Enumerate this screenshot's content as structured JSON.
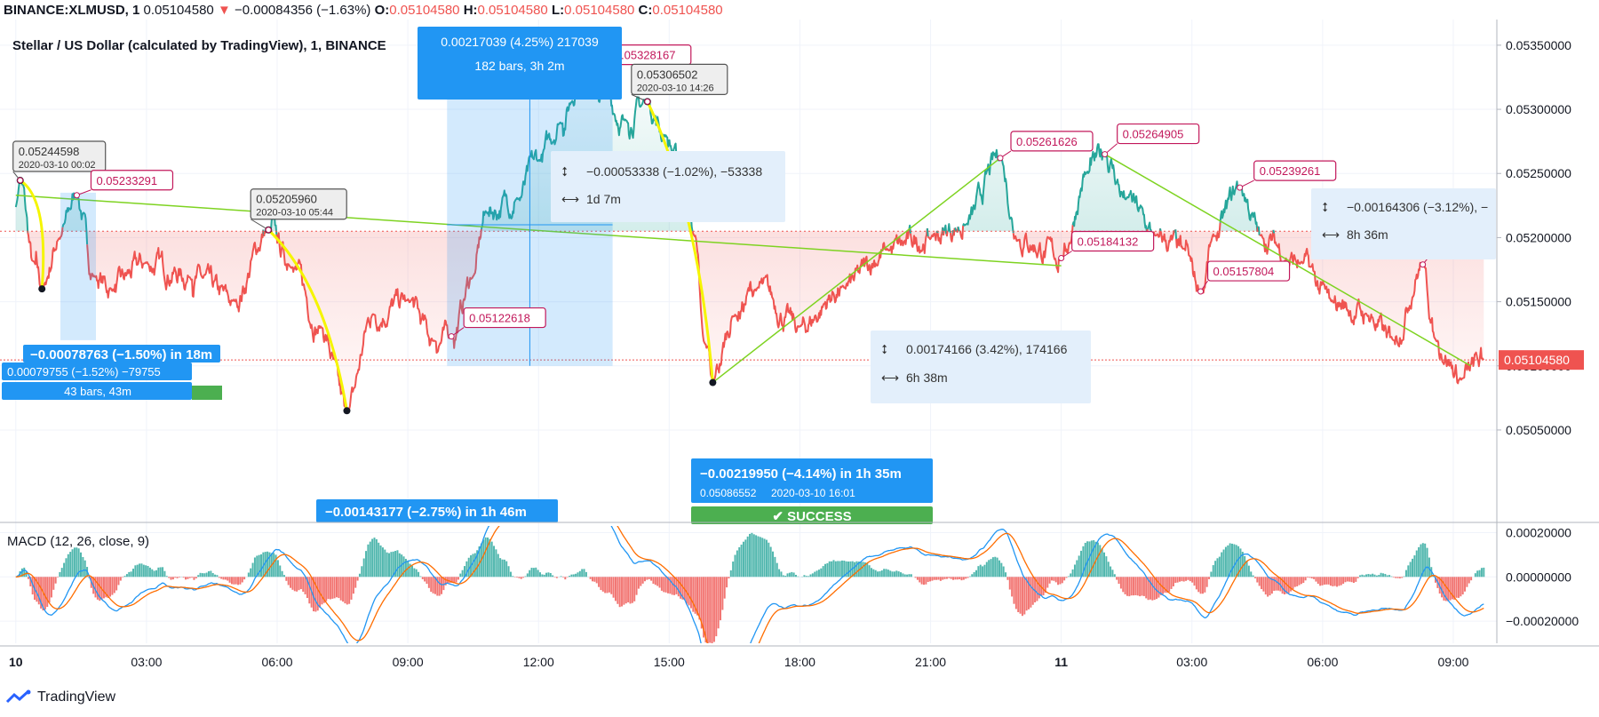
{
  "header": {
    "symbol": "BINANCE:XLMUSD, 1",
    "last": "0.05104580",
    "arrow": "▼",
    "change": "−0.00084356 (−1.63%)",
    "o_label": "O:",
    "o_val": "0.05104580",
    "h_label": "H:",
    "h_val": "0.05104580",
    "l_label": "L:",
    "l_val": "0.05104580",
    "c_label": "C:",
    "c_val": "0.05104580"
  },
  "chart_title": "Stellar / US Dollar (calculated by TradingView), 1, BINANCE",
  "macd_label": "MACD (12, 26, close, 9)",
  "footer": {
    "brand": "TradingView"
  },
  "colors": {
    "up": "#26a69a",
    "down": "#ef5350",
    "trend": "#7ed321",
    "curve": "#f5f500",
    "label": "#c2185b",
    "blue": "#2196f3",
    "success": "#4caf50"
  },
  "chart_data": {
    "type": "line",
    "price_axis": {
      "ylim": [
        0.0498,
        0.0537
      ],
      "ticks": [
        "0.05350000",
        "0.05300000",
        "0.05250000",
        "0.05200000",
        "0.05150000",
        "0.05100000",
        "0.05050000"
      ],
      "tick_values": [
        0.0535,
        0.053,
        0.0525,
        0.052,
        0.0515,
        0.051,
        0.0505
      ],
      "last_price_label": "0.05104580",
      "last_price": 0.0510458
    },
    "macd_axis": {
      "ylim": [
        -0.0003,
        0.00023
      ],
      "ticks": [
        "0.00020000",
        "0.00000000",
        "−0.00020000"
      ],
      "tick_values": [
        0.0002,
        0,
        -0.0002
      ]
    },
    "time_axis": {
      "ticks": [
        "10",
        "03:00",
        "06:00",
        "09:00",
        "12:00",
        "15:00",
        "18:00",
        "21:00",
        "11",
        "03:00",
        "06:00",
        "09:00"
      ],
      "tick_hours": [
        0,
        3,
        6,
        9,
        12,
        15,
        18,
        21,
        24,
        27,
        30,
        33
      ],
      "xlim": [
        -0.2,
        34.0
      ]
    },
    "series": [
      {
        "name": "XLMUSD",
        "keypoints": [
          [
            0,
            0.05225
          ],
          [
            0.1,
            0.052446
          ],
          [
            0.4,
            0.0518
          ],
          [
            0.6,
            0.0516
          ],
          [
            1.0,
            0.052
          ],
          [
            1.4,
            0.05233
          ],
          [
            1.8,
            0.0517
          ],
          [
            2.2,
            0.0516
          ],
          [
            3,
            0.0518
          ],
          [
            4,
            0.0517
          ],
          [
            5,
            0.0515
          ],
          [
            5.8,
            0.05206
          ],
          [
            6.3,
            0.0518
          ],
          [
            7,
            0.0513
          ],
          [
            7.6,
            0.05065
          ],
          [
            8.2,
            0.0514
          ],
          [
            9,
            0.0515
          ],
          [
            9.6,
            0.0512
          ],
          [
            10,
            0.05123
          ],
          [
            10.5,
            0.0517
          ],
          [
            10.8,
            0.0522
          ],
          [
            11.5,
            0.0523
          ],
          [
            12.0,
            0.0526
          ],
          [
            12.5,
            0.0529
          ],
          [
            13.0,
            0.05328
          ],
          [
            13.5,
            0.0531
          ],
          [
            14.0,
            0.0529
          ],
          [
            14.5,
            0.05306
          ],
          [
            14.9,
            0.0528
          ],
          [
            15.3,
            0.0525
          ],
          [
            15.6,
            0.052
          ],
          [
            15.8,
            0.0512
          ],
          [
            16.0,
            0.05087
          ],
          [
            16.5,
            0.0514
          ],
          [
            17,
            0.0516
          ],
          [
            18,
            0.0513
          ],
          [
            19,
            0.0516
          ],
          [
            20,
            0.0519
          ],
          [
            21,
            0.052
          ],
          [
            21.8,
            0.0521
          ],
          [
            22.6,
            0.05262
          ],
          [
            23,
            0.052
          ],
          [
            24,
            0.05184
          ],
          [
            24.6,
            0.0525
          ],
          [
            25.0,
            0.05265
          ],
          [
            25.5,
            0.0523
          ],
          [
            26.2,
            0.052
          ],
          [
            26.8,
            0.0519
          ],
          [
            27.2,
            0.05158
          ],
          [
            27.5,
            0.052
          ],
          [
            28.1,
            0.05239
          ],
          [
            28.6,
            0.052
          ],
          [
            29.5,
            0.0518
          ],
          [
            30.2,
            0.0515
          ],
          [
            31,
            0.0514
          ],
          [
            31.6,
            0.0512
          ],
          [
            32.3,
            0.05179
          ],
          [
            32.6,
            0.0512
          ],
          [
            33.2,
            0.0509
          ],
          [
            33.7,
            0.0510458
          ]
        ]
      },
      {
        "name": "MACD",
        "style": "line"
      },
      {
        "name": "Signal",
        "style": "line"
      }
    ]
  },
  "annotations": [
    {
      "name": "label-0.05244598",
      "price": "0.05244598",
      "date": "2020-03-10 00:02",
      "style": "gray"
    },
    {
      "name": "label-0.05233291",
      "price": "0.05233291",
      "style": "red"
    },
    {
      "name": "label-0.05205960",
      "price": "0.05205960",
      "date": "2020-03-10 05:44",
      "style": "gray"
    },
    {
      "name": "label-0.05122618",
      "price": "0.05122618",
      "style": "red"
    },
    {
      "name": "label-0.05328167",
      "price": "0.05328167",
      "style": "red"
    },
    {
      "name": "label-0.05306502",
      "price": "0.05306502",
      "date": "2020-03-10 14:26",
      "style": "gray"
    },
    {
      "name": "label-0.05261626",
      "price": "0.05261626",
      "style": "red"
    },
    {
      "name": "label-0.05264905",
      "price": "0.05264905",
      "style": "red"
    },
    {
      "name": "label-0.05184132",
      "price": "0.05184132",
      "style": "red"
    },
    {
      "name": "label-0.05239261",
      "price": "0.05239261",
      "style": "red"
    },
    {
      "name": "label-0.05157804",
      "price": "0.05157804",
      "style": "red"
    },
    {
      "name": "label-0.05179",
      "price": "0.05179",
      "style": "red"
    }
  ],
  "measures": {
    "m1": {
      "line1": "0.00217039 (4.25%) 217039",
      "line2": "182 bars, 3h 2m"
    },
    "m2": {
      "line1": "−0.00053338 (−1.02%), −53338",
      "line2": "1d 7m"
    },
    "m3": {
      "line1": "0.00174166 (3.42%), 174166",
      "line2": "6h 38m"
    },
    "m4": {
      "line1": "−0.00164306 (−3.12%), −",
      "line2": "8h 36m"
    },
    "m5": {
      "line1": "−0.00078763 (−1.50%) in 18m",
      "line2": "0.00079755 (−1.52%) −79755",
      "line3": "43 bars, 43m"
    },
    "m6": {
      "line1": "−0.00143177 (−2.75%) in 1h 46m"
    },
    "m7": {
      "line1": "−0.00219950 (−4.14%) in 1h 35m",
      "line2": "0.05086552",
      "line3": "2020-03-10  16:01",
      "success": "✔ SUCCESS"
    }
  }
}
